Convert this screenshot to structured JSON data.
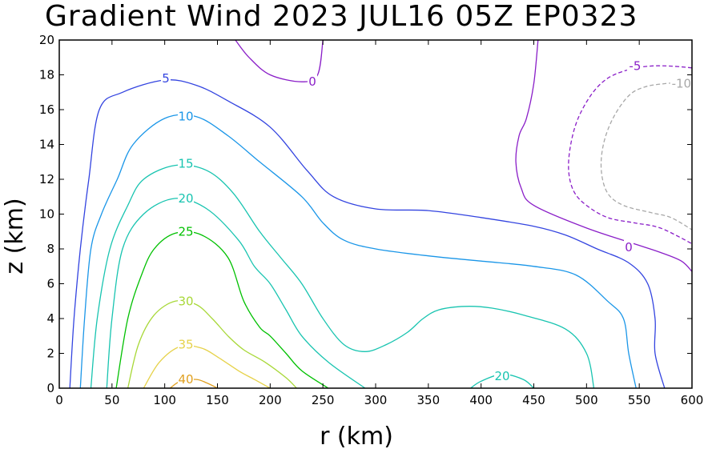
{
  "chart_data": {
    "type": "contour",
    "title": "Gradient Wind 2023 JUL16 05Z  EP0323",
    "xlabel": "r (km)",
    "ylabel": "z (km)",
    "xlim": [
      0,
      600
    ],
    "ylim": [
      0,
      20
    ],
    "xticks": [
      0,
      50,
      100,
      150,
      200,
      250,
      300,
      350,
      400,
      450,
      500,
      550,
      600
    ],
    "yticks": [
      0,
      2,
      4,
      6,
      8,
      10,
      12,
      14,
      16,
      18,
      20
    ],
    "contours": [
      {
        "level": "0",
        "color": "#8a1ec8",
        "dashed": false,
        "points": [
          [
            167,
            20
          ],
          [
            180,
            19
          ],
          [
            200,
            18
          ],
          [
            230,
            17.6
          ],
          [
            245,
            18
          ],
          [
            250,
            20
          ]
        ],
        "label_at": [
          240,
          17.6
        ]
      },
      {
        "level": "0",
        "color": "#8a1ec8",
        "dashed": false,
        "points": [
          [
            454,
            20
          ],
          [
            450,
            17.5
          ],
          [
            443,
            15.5
          ],
          [
            436,
            14.5
          ],
          [
            433,
            13
          ],
          [
            438,
            11.5
          ],
          [
            450,
            10.5
          ],
          [
            500,
            9.2
          ],
          [
            550,
            8.2
          ],
          [
            570,
            7.8
          ],
          [
            590,
            7.3
          ],
          [
            600,
            6.7
          ]
        ],
        "label_at": [
          540,
          8.1
        ]
      },
      {
        "level": "-5",
        "color": "#8a1ec8",
        "dashed": true,
        "points": [
          [
            600,
            18.4
          ],
          [
            580,
            18.5
          ],
          [
            560,
            18.5
          ],
          [
            540,
            18.3
          ],
          [
            520,
            17.8
          ],
          [
            505,
            16.9
          ],
          [
            492,
            15.5
          ],
          [
            485,
            14
          ],
          [
            483,
            12.5
          ],
          [
            488,
            11.3
          ],
          [
            500,
            10.5
          ],
          [
            520,
            9.8
          ],
          [
            545,
            9.5
          ],
          [
            570,
            9.2
          ],
          [
            600,
            8.3
          ]
        ],
        "label_at": [
          546,
          18.5
        ]
      },
      {
        "level": "-10",
        "color": "#a8a8a8",
        "dashed": true,
        "points": [
          [
            600,
            17.6
          ],
          [
            575,
            17.5
          ],
          [
            555,
            17.3
          ],
          [
            540,
            16.8
          ],
          [
            525,
            15.5
          ],
          [
            516,
            14
          ],
          [
            514,
            12.5
          ],
          [
            520,
            11.2
          ],
          [
            535,
            10.5
          ],
          [
            560,
            10.1
          ],
          [
            580,
            9.8
          ],
          [
            600,
            9.1
          ]
        ],
        "label_at": [
          590,
          17.5
        ]
      },
      {
        "level": "5",
        "color": "#3344e0",
        "dashed": false,
        "points": [
          [
            10,
            0
          ],
          [
            14,
            4
          ],
          [
            20,
            8
          ],
          [
            28,
            12
          ],
          [
            38,
            16
          ],
          [
            60,
            17
          ],
          [
            100,
            17.7
          ],
          [
            130,
            17.4
          ],
          [
            160,
            16.5
          ],
          [
            200,
            15
          ],
          [
            235,
            12.5
          ],
          [
            260,
            11
          ],
          [
            300,
            10.3
          ],
          [
            350,
            10.2
          ],
          [
            400,
            9.8
          ],
          [
            450,
            9.3
          ],
          [
            480,
            8.8
          ],
          [
            510,
            8
          ],
          [
            540,
            7.2
          ],
          [
            558,
            6
          ],
          [
            565,
            4
          ],
          [
            565,
            2
          ],
          [
            574,
            0
          ]
        ],
        "label_at": [
          101,
          17.8
        ]
      },
      {
        "level": "10",
        "color": "#1a96e8",
        "dashed": false,
        "points": [
          [
            20,
            0
          ],
          [
            24,
            4
          ],
          [
            30,
            8
          ],
          [
            40,
            10
          ],
          [
            55,
            12
          ],
          [
            70,
            14
          ],
          [
            100,
            15.5
          ],
          [
            130,
            15.6
          ],
          [
            160,
            14.5
          ],
          [
            190,
            13
          ],
          [
            230,
            11
          ],
          [
            250,
            9.5
          ],
          [
            270,
            8.5
          ],
          [
            300,
            8
          ],
          [
            350,
            7.6
          ],
          [
            400,
            7.3
          ],
          [
            450,
            7
          ],
          [
            490,
            6.5
          ],
          [
            520,
            5
          ],
          [
            535,
            4
          ],
          [
            540,
            2
          ],
          [
            547,
            0
          ]
        ],
        "label_at": [
          120,
          15.6
        ]
      },
      {
        "level": "15",
        "color": "#18c4b0",
        "dashed": false,
        "points": [
          [
            30,
            0
          ],
          [
            36,
            4
          ],
          [
            48,
            8
          ],
          [
            65,
            10.5
          ],
          [
            80,
            12
          ],
          [
            110,
            12.8
          ],
          [
            140,
            12.5
          ],
          [
            165,
            11.2
          ],
          [
            190,
            9
          ],
          [
            210,
            7.5
          ],
          [
            230,
            6
          ],
          [
            250,
            4
          ],
          [
            270,
            2.5
          ],
          [
            290,
            2.1
          ],
          [
            310,
            2.5
          ],
          [
            330,
            3.2
          ],
          [
            345,
            4
          ],
          [
            360,
            4.5
          ],
          [
            385,
            4.7
          ],
          [
            410,
            4.6
          ],
          [
            440,
            4.2
          ],
          [
            480,
            3.4
          ],
          [
            500,
            2
          ],
          [
            507,
            0
          ]
        ],
        "label_at": [
          120,
          12.9
        ]
      },
      {
        "level": "20",
        "color": "#18c4b0",
        "dashed": false,
        "points": [
          [
            45,
            0
          ],
          [
            50,
            4
          ],
          [
            60,
            8
          ],
          [
            80,
            10
          ],
          [
            110,
            10.9
          ],
          [
            140,
            10.3
          ],
          [
            170,
            8.5
          ],
          [
            185,
            7
          ],
          [
            200,
            6
          ],
          [
            215,
            4.5
          ],
          [
            230,
            3
          ],
          [
            255,
            1.5
          ],
          [
            290,
            0
          ]
        ],
        "label_at": [
          120,
          10.9
        ]
      },
      {
        "level": "20",
        "color": "#18c4b0",
        "dashed": false,
        "points": [
          [
            390,
            0
          ],
          [
            400,
            0.4
          ],
          [
            420,
            0.8
          ],
          [
            440,
            0.5
          ],
          [
            450,
            0
          ]
        ],
        "label_at": [
          420,
          0.7
        ]
      },
      {
        "level": "25",
        "color": "#00c000",
        "dashed": false,
        "points": [
          [
            54,
            0
          ],
          [
            65,
            4
          ],
          [
            78,
            6.5
          ],
          [
            90,
            8
          ],
          [
            110,
            8.9
          ],
          [
            135,
            8.8
          ],
          [
            160,
            7.5
          ],
          [
            175,
            5
          ],
          [
            190,
            3.5
          ],
          [
            200,
            3
          ],
          [
            215,
            2
          ],
          [
            230,
            1
          ],
          [
            255,
            0
          ]
        ],
        "label_at": [
          120,
          9
        ]
      },
      {
        "level": "30",
        "color": "#a8d838",
        "dashed": false,
        "points": [
          [
            65,
            0
          ],
          [
            75,
            2.5
          ],
          [
            90,
            4.2
          ],
          [
            110,
            5
          ],
          [
            130,
            4.8
          ],
          [
            145,
            4
          ],
          [
            160,
            3
          ],
          [
            175,
            2.2
          ],
          [
            195,
            1.5
          ],
          [
            215,
            0.6
          ],
          [
            225,
            0
          ]
        ],
        "label_at": [
          120,
          5
        ]
      },
      {
        "level": "35",
        "color": "#e6d24a",
        "dashed": false,
        "points": [
          [
            80,
            0
          ],
          [
            95,
            1.5
          ],
          [
            115,
            2.4
          ],
          [
            135,
            2.3
          ],
          [
            150,
            1.8
          ],
          [
            170,
            1
          ],
          [
            185,
            0.5
          ],
          [
            200,
            0
          ]
        ],
        "label_at": [
          120,
          2.5
        ]
      },
      {
        "level": "40",
        "color": "#e0a020",
        "dashed": false,
        "points": [
          [
            105,
            0
          ],
          [
            115,
            0.4
          ],
          [
            130,
            0.5
          ],
          [
            140,
            0.3
          ],
          [
            150,
            0
          ]
        ],
        "label_at": [
          120,
          0.5
        ]
      }
    ]
  }
}
